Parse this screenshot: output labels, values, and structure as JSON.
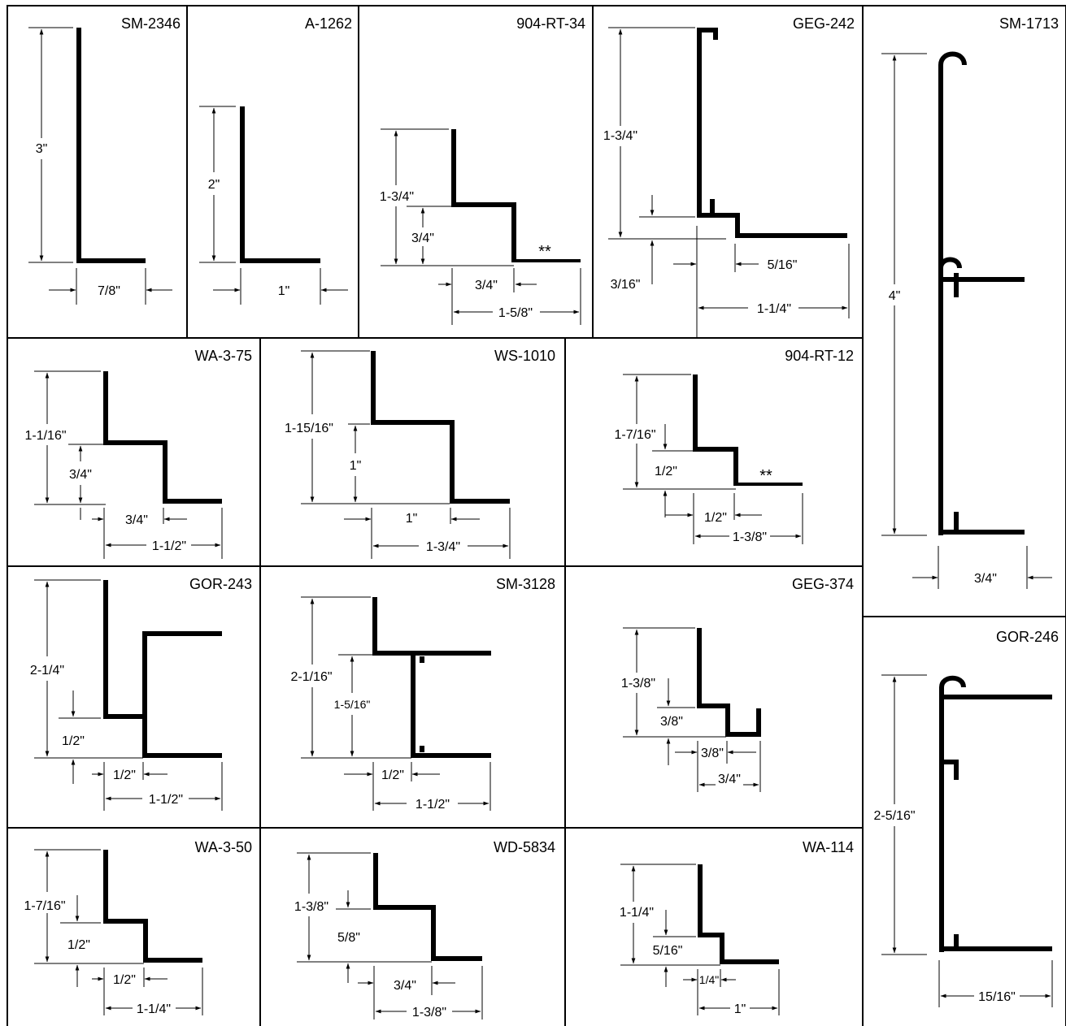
{
  "panels": [
    {
      "code": "SM-2346",
      "dims": [
        "3\"",
        "7/8\""
      ]
    },
    {
      "code": "A-1262",
      "dims": [
        "2\"",
        "1\""
      ]
    },
    {
      "code": "904-RT-34",
      "dims": [
        "1-3/4\"",
        "3/4\"",
        "3/4\"",
        "1-5/8\""
      ],
      "note": "**"
    },
    {
      "code": "GEG-242",
      "dims": [
        "1-3/4\"",
        "3/16\"",
        "5/16\"",
        "1-1/4\""
      ]
    },
    {
      "code": "SM-1713",
      "dims": [
        "4\"",
        "3/4\""
      ]
    },
    {
      "code": "WA-3-75",
      "dims": [
        "1-1/16\"",
        "3/4\"",
        "3/4\"",
        "1-1/2\""
      ]
    },
    {
      "code": "WS-1010",
      "dims": [
        "1-15/16\"",
        "1\"",
        "1\"",
        "1-3/4\""
      ]
    },
    {
      "code": "904-RT-12",
      "dims": [
        "1-7/16\"",
        "1/2\"",
        "1/2\"",
        "1-3/8\""
      ],
      "note": "**"
    },
    {
      "code": "GOR-243",
      "dims": [
        "2-1/4\"",
        "1/2\"",
        "1/2\"",
        "1-1/2\""
      ]
    },
    {
      "code": "SM-3128",
      "dims": [
        "2-1/16\"",
        "1-5/16\"",
        "1/2\"",
        "1-1/2\""
      ]
    },
    {
      "code": "GEG-374",
      "dims": [
        "1-3/8\"",
        "3/8\"",
        "3/8\"",
        "3/4\""
      ]
    },
    {
      "code": "GOR-246",
      "dims": [
        "2-5/16\"",
        "15/16\""
      ]
    },
    {
      "code": "WA-3-50",
      "dims": [
        "1-7/16\"",
        "1/2\"",
        "1/2\"",
        "1-1/4\""
      ]
    },
    {
      "code": "WD-5834",
      "dims": [
        "1-3/8\"",
        "5/8\"",
        "3/4\"",
        "1-3/8\""
      ]
    },
    {
      "code": "WA-114",
      "dims": [
        "1-1/4\"",
        "5/16\"",
        "1/4\"",
        "1\""
      ]
    }
  ]
}
